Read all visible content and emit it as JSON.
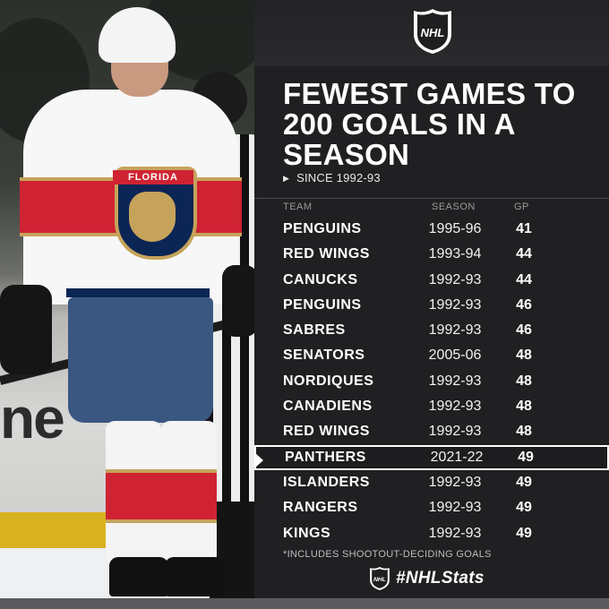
{
  "brand": {
    "logo_text": "NHL",
    "hashtag": "#NHLStats"
  },
  "graphic": {
    "title": "FEWEST GAMES TO 200 GOALS IN A SEASON",
    "subtitle": "SINCE 1992-93",
    "footnote": "*INCLUDES SHOOTOUT-DECIDING GOALS"
  },
  "table": {
    "headers": {
      "team": "TEAM",
      "season": "SEASON",
      "gp": "GP"
    },
    "rows": [
      {
        "team": "PENGUINS",
        "season": "1995-96",
        "gp": "41"
      },
      {
        "team": "RED WINGS",
        "season": "1993-94",
        "gp": "44"
      },
      {
        "team": "CANUCKS",
        "season": "1992-93",
        "gp": "44"
      },
      {
        "team": "PENGUINS",
        "season": "1992-93",
        "gp": "46"
      },
      {
        "team": "SABRES",
        "season": "1992-93",
        "gp": "46"
      },
      {
        "team": "SENATORS",
        "season": "2005-06",
        "gp": "48"
      },
      {
        "team": "NORDIQUES",
        "season": "1992-93",
        "gp": "48"
      },
      {
        "team": "CANADIENS",
        "season": "1992-93",
        "gp": "48"
      },
      {
        "team": "RED WINGS",
        "season": "1992-93",
        "gp": "48"
      },
      {
        "team": "PANTHERS",
        "season": "2021-22",
        "gp": "49",
        "highlighted": true
      },
      {
        "team": "ISLANDERS",
        "season": "1992-93",
        "gp": "49"
      },
      {
        "team": "RANGERS",
        "season": "1992-93",
        "gp": "49"
      },
      {
        "team": "KINGS",
        "season": "1992-93",
        "gp": "49"
      }
    ]
  },
  "photo": {
    "crest_text": "FLORIDA",
    "board_text": "ne"
  },
  "colors": {
    "panel": "#202022",
    "highlight_border": "#ffffff",
    "panthers_red": "#cf2333",
    "panthers_navy": "#0b2555",
    "panthers_gold": "#c6a35a"
  }
}
